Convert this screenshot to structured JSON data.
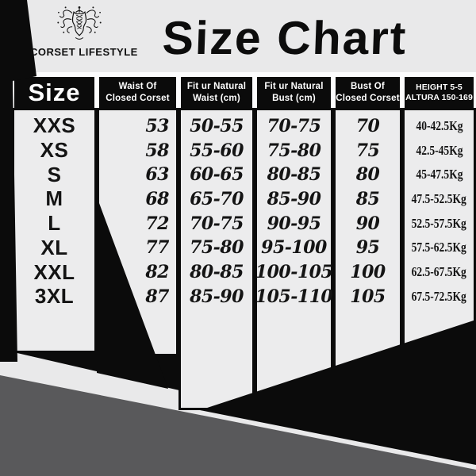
{
  "logo": {
    "icon": "corset-icon",
    "text": "CORSET LIFESTYLE"
  },
  "chart_data": {
    "type": "table",
    "title": "Size Chart",
    "columns": [
      {
        "id": "size",
        "lines": [
          "Size"
        ]
      },
      {
        "id": "waist-closed",
        "lines": [
          "Waist Of",
          "Closed Corset"
        ]
      },
      {
        "id": "natural-waist",
        "lines": [
          "Fit ur Natural",
          "Waist (cm)"
        ]
      },
      {
        "id": "natural-bust",
        "lines": [
          "Fit ur Natural",
          "Bust (cm)"
        ]
      },
      {
        "id": "bust-closed",
        "lines": [
          "Bust Of",
          "Closed Corset"
        ]
      },
      {
        "id": "height-weight",
        "lines": [
          "HEIGHT 5-5",
          "ALTURA 150-169"
        ]
      }
    ],
    "rows": [
      [
        "XXS",
        "53",
        "50-55",
        "70-75",
        "70",
        "40-42.5Kg"
      ],
      [
        "XS",
        "58",
        "55-60",
        "75-80",
        "75",
        "42.5-45Kg"
      ],
      [
        "S",
        "63",
        "60-65",
        "80-85",
        "80",
        "45-47.5Kg"
      ],
      [
        "M",
        "68",
        "65-70",
        "85-90",
        "85",
        "47.5-52.5Kg"
      ],
      [
        "L",
        "72",
        "70-75",
        "90-95",
        "90",
        "52.5-57.5Kg"
      ],
      [
        "XL",
        "77",
        "75-80",
        "95-100",
        "95",
        "57.5-62.5Kg"
      ],
      [
        "XXL",
        "82",
        "80-85",
        "100-105",
        "100",
        "62.5-67.5Kg"
      ],
      [
        "3XL",
        "87",
        "85-90",
        "105-110",
        "105",
        "67.5-72.5Kg"
      ]
    ]
  },
  "colors": {
    "base": "#e9e9ea",
    "strip": "#ececed",
    "white_bar": "#fcfcfd",
    "black": "#0b0b0b",
    "dark_gray": "#59595b"
  }
}
